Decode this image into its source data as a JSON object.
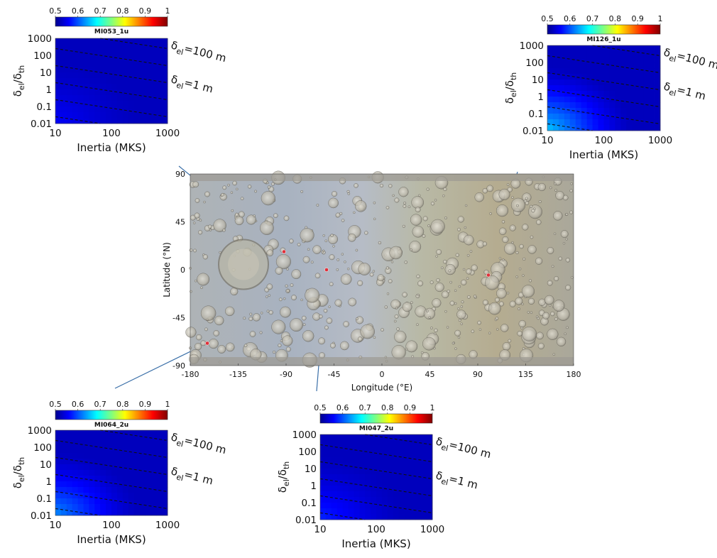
{
  "map": {
    "xlabel": "Longitude (°E)",
    "ylabel": "Latitude (°N)",
    "xticks": [
      "-180",
      "-135",
      "-90",
      "-45",
      "0",
      "45",
      "90",
      "135",
      "180"
    ],
    "yticks": [
      "90",
      "45",
      "0",
      "-45",
      "-90"
    ],
    "xlim": [
      -180,
      180
    ],
    "ylim": [
      -90,
      90
    ],
    "sites": [
      {
        "name": "MI053_1u",
        "lon": -92,
        "lat": 17
      },
      {
        "name": "MI126_1u",
        "lon": 100,
        "lat": -5
      },
      {
        "name": "MI047_2u",
        "lon": -52,
        "lat": 0
      },
      {
        "name": "MI064_2u",
        "lon": -164,
        "lat": -69
      }
    ]
  },
  "colorbar": {
    "ticks": [
      "0.5",
      "0.6",
      "0.7",
      "0.8",
      "0.9",
      "1"
    ],
    "range": [
      0.5,
      1
    ],
    "colormap": "jet"
  },
  "panel_labels": {
    "xlabel": "Inertia (MKS)",
    "ylabel_main": "δ",
    "ylabel_sub1": "el",
    "ylabel_mid": "/δ",
    "ylabel_sub2": "th",
    "xticks": [
      "10",
      "100",
      "1000"
    ],
    "yticks": [
      "1000",
      "100",
      "10",
      "1",
      "0.1",
      "0.01"
    ],
    "line_top_pre": "δ",
    "line_top_sub": "el",
    "line_top_post": "=100 m",
    "line_bot_pre": "δ",
    "line_bot_sub": "el",
    "line_bot_post": "=1 m"
  },
  "chart_data": [
    {
      "type": "scatter",
      "title": "",
      "xlabel": "Longitude (°E)",
      "ylabel": "Latitude (°N)",
      "xlim": [
        -180,
        180
      ],
      "ylim": [
        -90,
        90
      ],
      "x": [
        -92,
        100,
        -52,
        -164
      ],
      "y": [
        17,
        -5,
        0,
        -69
      ],
      "labels": [
        "MI053_1u",
        "MI126_1u",
        "MI047_2u",
        "MI064_2u"
      ]
    },
    {
      "type": "heatmap",
      "title": "MI053_1u",
      "xlabel": "Inertia (MKS)",
      "ylabel": "δel/δth",
      "xscale": "log",
      "yscale": "log",
      "xlim": [
        10,
        1000
      ],
      "ylim": [
        0.01,
        1000
      ],
      "clim": [
        0.5,
        1
      ],
      "value_min_corner": 0.53,
      "value_max_corner": 0.56,
      "annotations": [
        "δel=100 m",
        "δel=1 m"
      ]
    },
    {
      "type": "heatmap",
      "title": "MI126_1u",
      "xlabel": "Inertia (MKS)",
      "ylabel": "δel/δth",
      "xscale": "log",
      "yscale": "log",
      "xlim": [
        10,
        1000
      ],
      "ylim": [
        0.01,
        1000
      ],
      "clim": [
        0.5,
        1
      ],
      "value_min_corner": 0.53,
      "value_max_corner": 0.66,
      "annotations": [
        "δel=100 m",
        "δel=1 m"
      ]
    },
    {
      "type": "heatmap",
      "title": "MI064_2u",
      "xlabel": "Inertia (MKS)",
      "ylabel": "δel/δth",
      "xscale": "log",
      "yscale": "log",
      "xlim": [
        10,
        1000
      ],
      "ylim": [
        0.01,
        1000
      ],
      "clim": [
        0.5,
        1
      ],
      "value_min_corner": 0.53,
      "value_max_corner": 0.63,
      "annotations": [
        "δel=100 m",
        "δel=1 m"
      ]
    },
    {
      "type": "heatmap",
      "title": "MI047_2u",
      "xlabel": "Inertia (MKS)",
      "ylabel": "δel/δth",
      "xscale": "log",
      "yscale": "log",
      "xlim": [
        10,
        1000
      ],
      "ylim": [
        0.01,
        1000
      ],
      "clim": [
        0.5,
        1
      ],
      "value_min_corner": 0.53,
      "value_max_corner": 0.58,
      "annotations": [
        "δel=100 m",
        "δel=1 m"
      ]
    }
  ],
  "colors": {
    "leader_line": "#3a6fa8",
    "site_marker": "#e0303a",
    "dashed_line": "#111111"
  }
}
